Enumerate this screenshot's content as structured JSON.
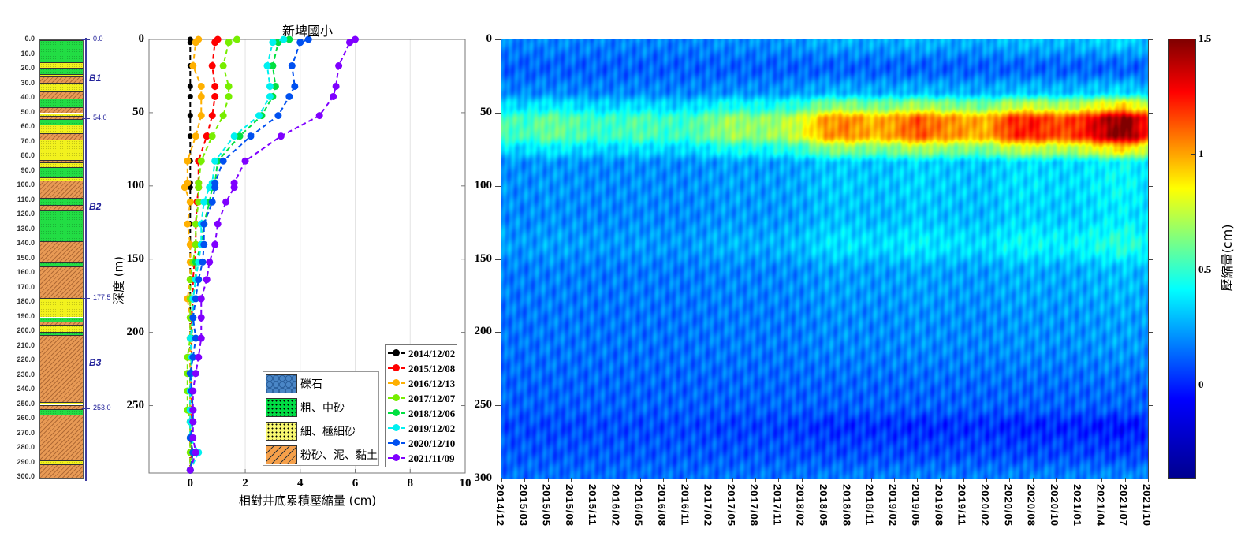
{
  "strat_column": {
    "depth_ticks": [
      "0.0",
      "10.0",
      "20.0",
      "30.0",
      "40.0",
      "50.0",
      "60.0",
      "70.0",
      "80.0",
      "90.0",
      "100.0",
      "110.0",
      "120.0",
      "130.0",
      "140.0",
      "150.0",
      "160.0",
      "170.0",
      "180.0",
      "190.0",
      "200.0",
      "210.0",
      "220.0",
      "230.0",
      "240.0",
      "250.0",
      "260.0",
      "270.0",
      "280.0",
      "290.0",
      "300.0"
    ],
    "boundaries": [
      {
        "depth": 0,
        "label": "0.0"
      },
      {
        "depth": 54,
        "label": "54.0"
      },
      {
        "depth": 177.5,
        "label": "177.5"
      },
      {
        "depth": 253,
        "label": "253.0"
      }
    ],
    "units": [
      {
        "label": "B1",
        "depth": 27
      },
      {
        "label": "B2",
        "depth": 115
      },
      {
        "label": "B3",
        "depth": 222
      }
    ],
    "layers": [
      [
        0,
        15,
        "g"
      ],
      [
        15,
        19,
        "y"
      ],
      [
        19,
        23,
        "g"
      ],
      [
        23,
        25,
        "y"
      ],
      [
        25,
        29,
        "o"
      ],
      [
        29,
        35,
        "y"
      ],
      [
        35,
        40,
        "o"
      ],
      [
        40,
        46,
        "g"
      ],
      [
        46,
        50,
        "o"
      ],
      [
        50,
        52,
        "y"
      ],
      [
        52,
        54,
        "o"
      ],
      [
        54,
        58,
        "g"
      ],
      [
        58,
        64,
        "y"
      ],
      [
        64,
        68,
        "o"
      ],
      [
        68,
        82,
        "y"
      ],
      [
        82,
        84,
        "o"
      ],
      [
        84,
        87,
        "y"
      ],
      [
        87,
        94,
        "g"
      ],
      [
        94,
        96,
        "y"
      ],
      [
        96,
        108,
        "o"
      ],
      [
        108,
        113,
        "g"
      ],
      [
        113,
        117,
        "o"
      ],
      [
        117,
        138,
        "g"
      ],
      [
        138,
        152,
        "o"
      ],
      [
        152,
        155,
        "g"
      ],
      [
        155,
        177,
        "o"
      ],
      [
        177,
        190,
        "y"
      ],
      [
        190,
        193,
        "g"
      ],
      [
        193,
        195,
        "o"
      ],
      [
        195,
        200,
        "y"
      ],
      [
        200,
        202,
        "g"
      ],
      [
        202,
        248,
        "o"
      ],
      [
        248,
        250,
        "y"
      ],
      [
        250,
        253,
        "o"
      ],
      [
        253,
        257,
        "g"
      ],
      [
        257,
        288,
        "o"
      ],
      [
        288,
        291,
        "y"
      ],
      [
        291,
        300,
        "o"
      ]
    ],
    "colors": {
      "g": "#22dd44",
      "y": "#f2f21e",
      "o": "#e89a55"
    }
  },
  "lithology_legend": [
    {
      "label": "礫石",
      "color": "#4a86c6"
    },
    {
      "label": "粗、中砂",
      "color": "#00dd44"
    },
    {
      "label": "細、極細砂",
      "color": "#f8f870"
    },
    {
      "label": "粉砂、泥、黏土",
      "color": "#f5a04a"
    }
  ],
  "chart_data": [
    {
      "type": "line",
      "title": "新埤國小",
      "xlabel": "相對井底累積壓縮量 (cm)",
      "ylabel": "深度 (m)",
      "xlim": [
        -1.5,
        10
      ],
      "ylim": [
        0,
        296
      ],
      "xticks": [
        "0",
        "2",
        "4",
        "6",
        "8",
        "10"
      ],
      "yticks": [
        "0",
        "50",
        "100",
        "150",
        "200",
        "250"
      ],
      "legend": "bottom-right",
      "depths": [
        0,
        2,
        18,
        32,
        39,
        52,
        66,
        83,
        98,
        101,
        111,
        126,
        140,
        152,
        164,
        177,
        190,
        204,
        217,
        228,
        240,
        253,
        261,
        272,
        282,
        294
      ],
      "series": [
        {
          "name": "2014/12/02",
          "color": "#000000",
          "values": [
            0,
            0,
            0,
            0,
            0,
            0,
            0,
            0,
            0,
            0,
            0,
            0,
            0,
            0,
            0,
            0,
            0,
            0,
            0,
            0,
            0,
            0,
            0,
            0,
            0,
            0
          ]
        },
        {
          "name": "2015/12/08",
          "color": "#ff0000",
          "values": [
            1.0,
            0.9,
            0.8,
            0.9,
            0.9,
            0.8,
            0.6,
            0.3,
            0.3,
            0.3,
            0.25,
            0.2,
            0.2,
            0.15,
            0.1,
            0.1,
            0.05,
            0.05,
            0.05,
            0.05,
            0.05,
            0.05,
            0.05,
            0.05,
            0.05,
            0
          ]
        },
        {
          "name": "2016/12/13",
          "color": "#ffb000",
          "values": [
            0.3,
            0.2,
            0.1,
            0.4,
            0.4,
            0.4,
            0.2,
            -0.1,
            -0.1,
            -0.2,
            0,
            -0.1,
            0,
            0,
            0,
            -0.1,
            0,
            0,
            0,
            0,
            0,
            0,
            0,
            0,
            0,
            0
          ]
        },
        {
          "name": "2017/12/07",
          "color": "#77ee00",
          "values": [
            1.7,
            1.4,
            1.2,
            1.4,
            1.4,
            1.2,
            0.8,
            0.4,
            0.3,
            0.3,
            0.3,
            0.2,
            0.2,
            0.1,
            0,
            0,
            0,
            0,
            -0.1,
            -0.1,
            -0.1,
            -0.1,
            0,
            0,
            0,
            0
          ]
        },
        {
          "name": "2018/12/06",
          "color": "#00e040",
          "values": [
            3.6,
            3.2,
            3.0,
            3.1,
            3.0,
            2.6,
            1.8,
            1.0,
            0.9,
            0.8,
            0.7,
            0.5,
            0.4,
            0.2,
            0.2,
            0.1,
            0.1,
            0.05,
            0.05,
            0,
            0,
            0,
            0,
            0,
            0.1,
            0
          ]
        },
        {
          "name": "2019/12/02",
          "color": "#00f0f0",
          "values": [
            3.4,
            3.0,
            2.8,
            2.9,
            2.9,
            2.5,
            1.6,
            0.9,
            0.8,
            0.7,
            0.5,
            0.4,
            0.4,
            0.3,
            0.2,
            0.1,
            0.1,
            0,
            0.05,
            0.05,
            0,
            0,
            0,
            0,
            0.3,
            0
          ]
        },
        {
          "name": "2020/12/10",
          "color": "#0050f0",
          "values": [
            4.3,
            4.0,
            3.7,
            3.8,
            3.6,
            3.2,
            2.2,
            1.2,
            0.9,
            0.9,
            0.8,
            0.5,
            0.5,
            0.45,
            0.3,
            0.2,
            0.1,
            0.2,
            0.1,
            0,
            0.05,
            0.1,
            0.1,
            0,
            0.1,
            0
          ]
        },
        {
          "name": "2021/11/09",
          "color": "#7f00ff",
          "values": [
            6.0,
            5.8,
            5.4,
            5.3,
            5.2,
            4.7,
            3.3,
            2.0,
            1.6,
            1.6,
            1.3,
            1.0,
            0.9,
            0.7,
            0.6,
            0.4,
            0.4,
            0.4,
            0.3,
            0.2,
            0.1,
            0.1,
            0.1,
            0.1,
            0.2,
            0
          ]
        }
      ]
    },
    {
      "type": "heatmap",
      "ylim": [
        0,
        300
      ],
      "yticks": [
        "0",
        "50",
        "100",
        "150",
        "200",
        "250",
        "300"
      ],
      "xticks": [
        "2014/12",
        "2015/03",
        "2015/05",
        "2015/08",
        "2015/11",
        "2016/02",
        "2016/05",
        "2016/08",
        "2016/11",
        "2017/02",
        "2017/05",
        "2017/08",
        "2017/11",
        "2018/02",
        "2018/05",
        "2018/08",
        "2018/11",
        "2019/02",
        "2019/05",
        "2019/08",
        "2019/11",
        "2020/02",
        "2020/05",
        "2020/08",
        "2020/10",
        "2021/01",
        "2021/04",
        "2021/07",
        "2021/10"
      ],
      "peak_compaction_50_70m": [
        0.45,
        0.4,
        0.5,
        0.45,
        0.4,
        0.4,
        0.45,
        0.4,
        0.4,
        0.5,
        0.6,
        0.55,
        0.6,
        0.7,
        0.95,
        1.0,
        0.9,
        0.95,
        1.1,
        1.0,
        0.95,
        0.9,
        1.15,
        1.2,
        1.1,
        1.15,
        1.35,
        1.5,
        1.2
      ],
      "profile_depths": [
        0,
        20,
        35,
        45,
        55,
        65,
        75,
        85,
        100,
        120,
        140,
        160,
        200,
        250,
        265,
        280,
        300
      ],
      "profile_factors": [
        0.15,
        0.0,
        0.15,
        0.55,
        1.0,
        1.0,
        0.55,
        0.2,
        0.2,
        0.18,
        0.25,
        0.12,
        0.08,
        0.0,
        -0.1,
        -0.05,
        0.05
      ],
      "colorbar": {
        "label": "壓縮量(cm)",
        "range": [
          -0.4,
          1.5
        ],
        "ticks": [
          "0",
          "0.5",
          "1",
          "1.5"
        ]
      }
    }
  ]
}
